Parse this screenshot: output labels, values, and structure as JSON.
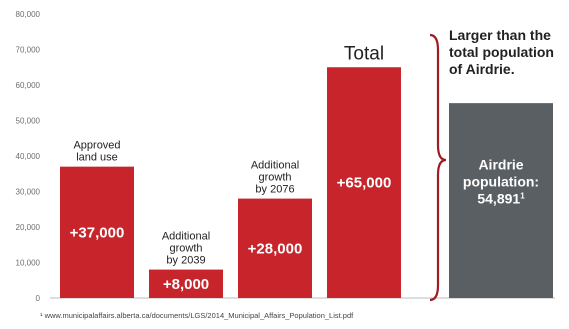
{
  "chart_data": {
    "type": "bar",
    "ylim": [
      0,
      80000
    ],
    "y_ticks": [
      "0",
      "10,000",
      "20,000",
      "30,000",
      "40,000",
      "50,000",
      "60,000",
      "70,000",
      "80,000"
    ],
    "grid": false,
    "bars": [
      {
        "value": 37000,
        "color": "#c8242b",
        "label_in_bar": "+37,000",
        "label_above": [
          "Approved",
          "land use"
        ]
      },
      {
        "value": 8000,
        "color": "#c8242b",
        "label_in_bar": "+8,000",
        "label_above": [
          "Additional",
          "growth",
          "by 2039"
        ]
      },
      {
        "value": 28000,
        "color": "#c8242b",
        "label_in_bar": "+28,000",
        "label_above": [
          "Additional",
          "growth",
          "by 2076"
        ]
      },
      {
        "value": 65000,
        "color": "#c8242b",
        "label_in_bar": "+65,000",
        "label_above": [
          "Total"
        ]
      },
      {
        "value": 54891,
        "color": "#5a5f63",
        "label_in_bar": [
          "Airdrie",
          "population:",
          "54,891"
        ],
        "superscript": "1"
      }
    ],
    "annotation": [
      "Larger than the",
      "total population",
      "of Airdrie."
    ],
    "footnote": "¹ www.municipalaffairs.alberta.ca/documents/LGS/2014_Municipal_Affairs_Population_List.pdf"
  }
}
